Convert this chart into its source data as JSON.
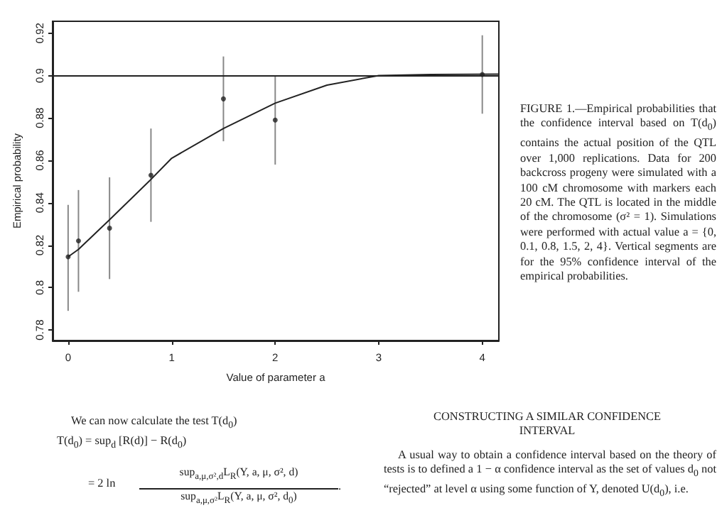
{
  "chart_data": {
    "type": "scatter",
    "xlabel": "Value of parameter a",
    "ylabel": "Empirical probability",
    "x": [
      0,
      0.1,
      0.4,
      0.8,
      1.5,
      2,
      4
    ],
    "series": [
      {
        "color": "#222222",
        "marker": "circle",
        "values": [
          0.8145,
          0.822,
          0.828,
          0.853,
          0.889,
          0.879,
          0.9005
        ],
        "errors": [
          [
            0.789,
            0.839
          ],
          [
            0.798,
            0.846
          ],
          [
            0.804,
            0.852
          ],
          [
            0.831,
            0.875
          ],
          [
            0.869,
            0.909
          ],
          [
            0.858,
            0.9
          ],
          [
            0.882,
            0.919
          ]
        ]
      },
      {
        "type": "line",
        "color": "#222222",
        "marker": "none",
        "x": [
          0,
          0.1,
          0.4,
          0.8,
          1,
          1.5,
          2,
          2.5,
          3,
          3.5,
          4.16
        ],
        "values": [
          0.8145,
          0.818,
          0.832,
          0.851,
          0.861,
          0.875,
          0.887,
          0.8955,
          0.9,
          0.9005,
          0.9007
        ]
      }
    ],
    "ref_lines": [
      {
        "axis": "y",
        "value": 0.9,
        "color": "#222222"
      }
    ],
    "xlim": [
      -0.15,
      4.16
    ],
    "xticks": [
      0,
      1,
      2,
      3,
      4
    ],
    "ylim": [
      0.775,
      0.9256
    ],
    "yticks": [
      0.78,
      0.8,
      0.82,
      0.84,
      0.86,
      0.88,
      0.9,
      0.92
    ],
    "grid": false,
    "line_style": "solid",
    "annotations": [
      "FIGURE 1.—Empirical probabilities that the confidence interval based on T(d$_{0}$) contains the actual position of the QTL over 1,000 replications. Data for 200 backcross progeny were simulated with a 100 cM chromosome with markers each 20 cM. The QTL is located in the middle of the chromosome (σ² = 1). Simulations were performed with actual value a = {0, 0.1, 0.8, 1.5, 2, 4}. Vertical segments are for the 95% confidence interval of the empirical probabilities.",
      "We can now calculate the test T(d$_{0}$)",
      "T(d$_{0}$) = sup$_{d}$ [R(d)] − R(d$_{0}$)",
      "= 2 ln",
      "sup$_{a,μ,σ²,d}$L$_{R}$(Y, a, μ, σ², d)",
      "sup$_{a,μ,σ²}$L$_{R}$(Y, a, μ, σ², d$_{0}$)",
      ".",
      "CONSTRUCTING A SIMILAR CONFIDENCE INTERVAL",
      "A usual way to obtain a confidence interval based on the theory of tests is to defined a 1 − α confidence interval as the set of values d$_{0}$ not “rejected” at level α using some function of Y, denoted U(d$_{0}$), i.e."
    ]
  }
}
